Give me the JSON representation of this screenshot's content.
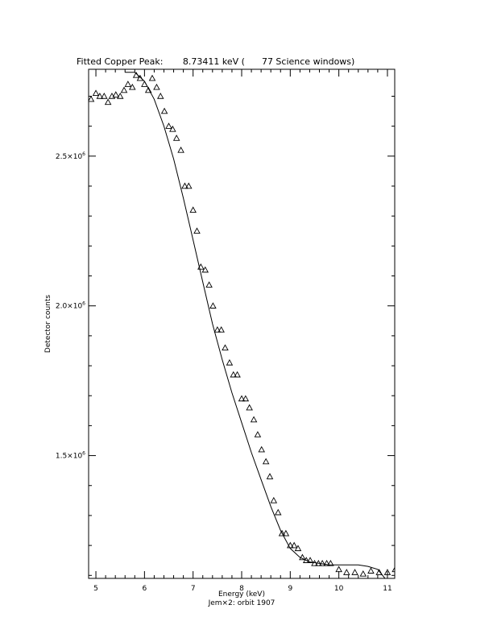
{
  "chart_data": {
    "type": "scatter",
    "title": "Fitted Copper Peak:       8.73411 keV (      77 Science windows)",
    "xlabel": "Energy (keV)",
    "ylabel": "Detector counts",
    "subtitle": "Jem×2: orbit 1907",
    "xlim": [
      4.85,
      11.15
    ],
    "ylim": [
      1090000,
      2790000
    ],
    "x_ticks": [
      {
        "value": 5,
        "label": "5"
      },
      {
        "value": 6,
        "label": "6"
      },
      {
        "value": 7,
        "label": "7"
      },
      {
        "value": 8,
        "label": "8"
      },
      {
        "value": 9,
        "label": "9"
      },
      {
        "value": 10,
        "label": "10"
      },
      {
        "value": 11,
        "label": "11"
      }
    ],
    "y_ticks": [
      {
        "value": 1500000,
        "mantissa": "1.5×10",
        "exponent": "6"
      },
      {
        "value": 2000000,
        "mantissa": "2.0×10",
        "exponent": "6"
      },
      {
        "value": 2500000,
        "mantissa": "2.5×10",
        "exponent": "6"
      }
    ],
    "grid": false,
    "series": [
      {
        "marker": "triangle",
        "x": [
          4.9,
          5.0,
          5.08,
          5.17,
          5.25,
          5.33,
          5.41,
          5.5,
          5.58,
          5.66,
          5.75,
          5.83,
          5.91,
          6.0,
          6.08,
          6.16,
          6.25,
          6.33,
          6.41,
          6.5,
          6.58,
          6.66,
          6.75,
          6.83,
          6.91,
          7.0,
          7.08,
          7.16,
          7.25,
          7.33,
          7.41,
          7.5,
          7.58,
          7.66,
          7.75,
          7.83,
          7.91,
          8.0,
          8.08,
          8.16,
          8.25,
          8.33,
          8.41,
          8.5,
          8.58,
          8.66,
          8.75,
          8.83,
          8.91,
          9.0,
          9.08,
          9.16,
          9.25,
          9.33,
          9.41,
          9.5,
          9.58,
          9.66,
          9.75,
          9.83,
          10.0,
          10.16,
          10.33,
          10.5,
          10.66,
          10.83,
          11.0,
          11.16
        ],
        "y": [
          2690000,
          2710000,
          2700000,
          2700000,
          2680000,
          2700000,
          2705000,
          2700000,
          2720000,
          2740000,
          2730000,
          2770000,
          2760000,
          2740000,
          2720000,
          2760000,
          2730000,
          2700000,
          2650000,
          2600000,
          2590000,
          2560000,
          2520000,
          2400000,
          2400000,
          2320000,
          2250000,
          2130000,
          2120000,
          2070000,
          2000000,
          1920000,
          1920000,
          1860000,
          1810000,
          1770000,
          1770000,
          1690000,
          1690000,
          1660000,
          1620000,
          1570000,
          1520000,
          1480000,
          1430000,
          1350000,
          1310000,
          1240000,
          1240000,
          1200000,
          1200000,
          1190000,
          1160000,
          1150000,
          1150000,
          1140000,
          1140000,
          1140000,
          1140000,
          1140000,
          1120000,
          1110000,
          1110000,
          1105000,
          1115000,
          1110000,
          1110000,
          1120000
        ]
      },
      {
        "marker": "line",
        "x": [
          5.6,
          5.8,
          6.0,
          6.2,
          6.4,
          6.6,
          6.8,
          7.0,
          7.2,
          7.4,
          7.6,
          7.8,
          8.0,
          8.2,
          8.4,
          8.6,
          8.8,
          9.0,
          9.2,
          9.4,
          9.6,
          9.8,
          10.0,
          10.2,
          10.4,
          10.6,
          10.8,
          10.95
        ],
        "y": [
          2780000,
          2780000,
          2750000,
          2690000,
          2600000,
          2490000,
          2360000,
          2220000,
          2080000,
          1940000,
          1820000,
          1710000,
          1610000,
          1510000,
          1420000,
          1330000,
          1250000,
          1190000,
          1160000,
          1145000,
          1140000,
          1135000,
          1135000,
          1135000,
          1135000,
          1130000,
          1120000,
          1090000
        ]
      }
    ]
  }
}
